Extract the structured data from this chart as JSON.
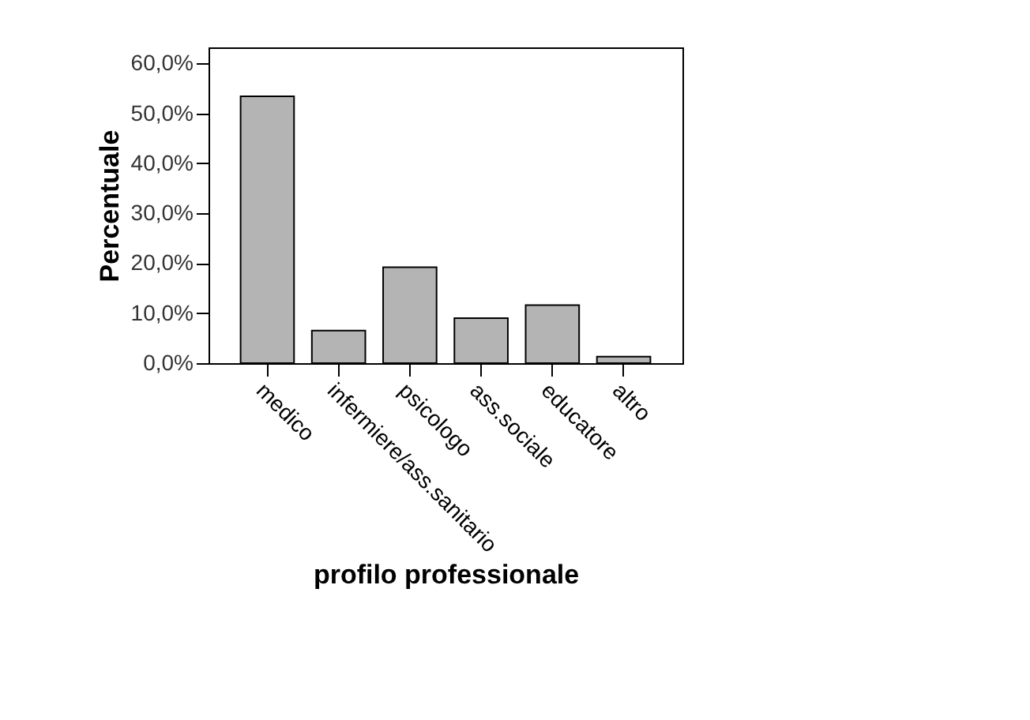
{
  "chart_data": {
    "type": "bar",
    "xlabel": "profilo professionale",
    "ylabel": "Percentuale",
    "categories": [
      "medico",
      "infermiere/ass.sanitario",
      "psicologo",
      "ass.sociale",
      "educatore",
      "altro"
    ],
    "values": [
      53.4,
      6.5,
      19.2,
      9.0,
      11.6,
      1.3
    ],
    "color": "#b4b4b4",
    "ylim": [
      0,
      63.2
    ],
    "yticks": [
      {
        "value": 0,
        "label": "0,0%"
      },
      {
        "value": 10,
        "label": "10,0%"
      },
      {
        "value": 20,
        "label": "20,0%"
      },
      {
        "value": 30,
        "label": "30,0%"
      },
      {
        "value": 40,
        "label": "40,0%"
      },
      {
        "value": 50,
        "label": "50,0%"
      },
      {
        "value": 60,
        "label": "60,0%"
      }
    ],
    "grid": false
  }
}
